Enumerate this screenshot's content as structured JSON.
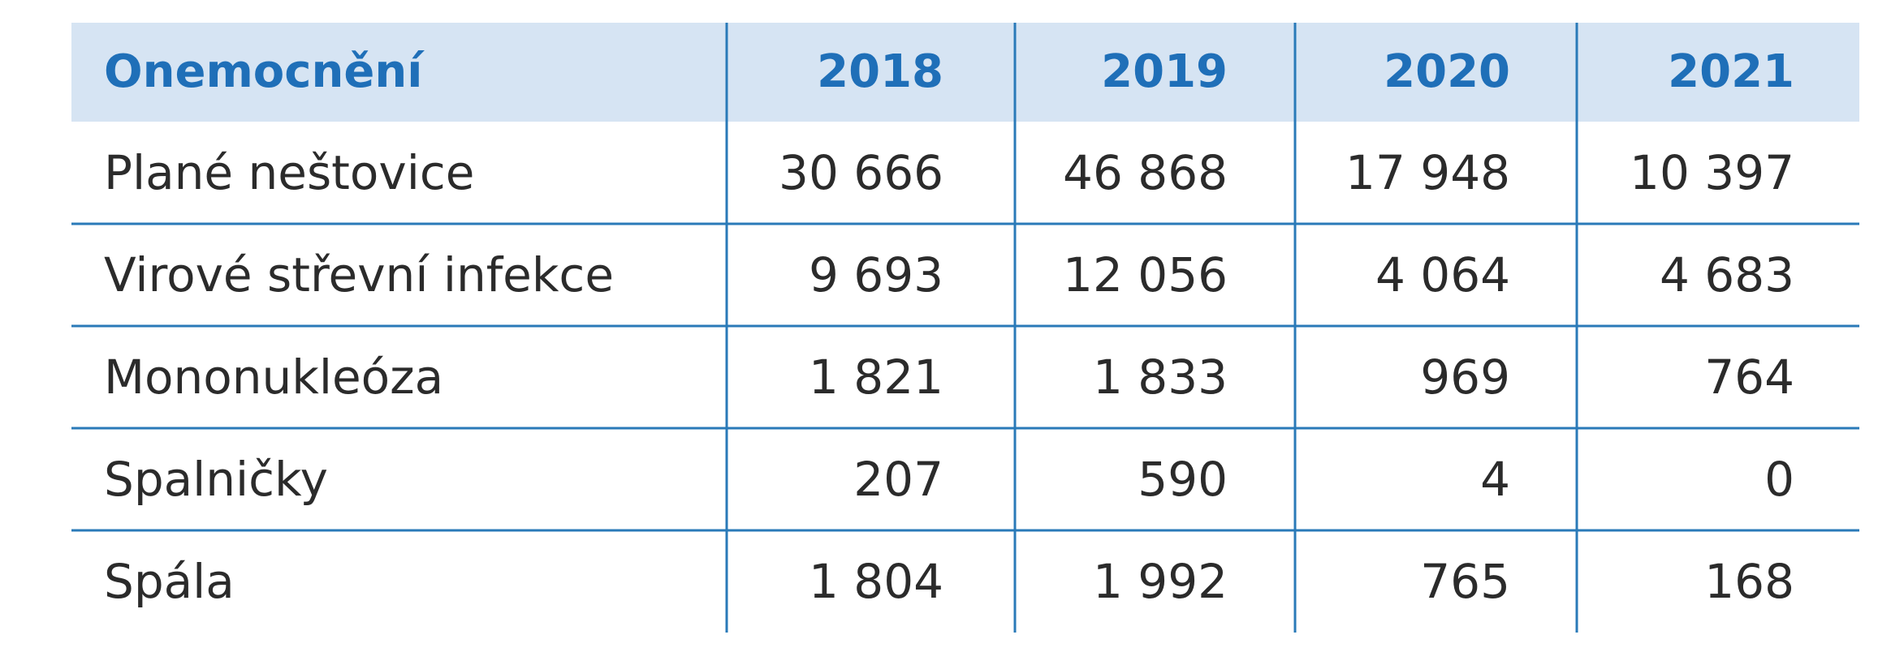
{
  "table": {
    "header": [
      "Onemocnění",
      "2018",
      "2019",
      "2020",
      "2021"
    ],
    "rows": [
      [
        "Plané neštovice",
        "30 666",
        "46 868",
        "17 948",
        "10 397"
      ],
      [
        "Virové střevní infekce",
        "9 693",
        "12 056",
        "4 064",
        "4 683"
      ],
      [
        "Mononukleóza",
        "1 821",
        "1 833",
        "969",
        "764"
      ],
      [
        "Spalničky",
        "207",
        "590",
        "4",
        "0"
      ],
      [
        "Spála",
        "1 804",
        "1 992",
        "765",
        "168"
      ]
    ]
  }
}
